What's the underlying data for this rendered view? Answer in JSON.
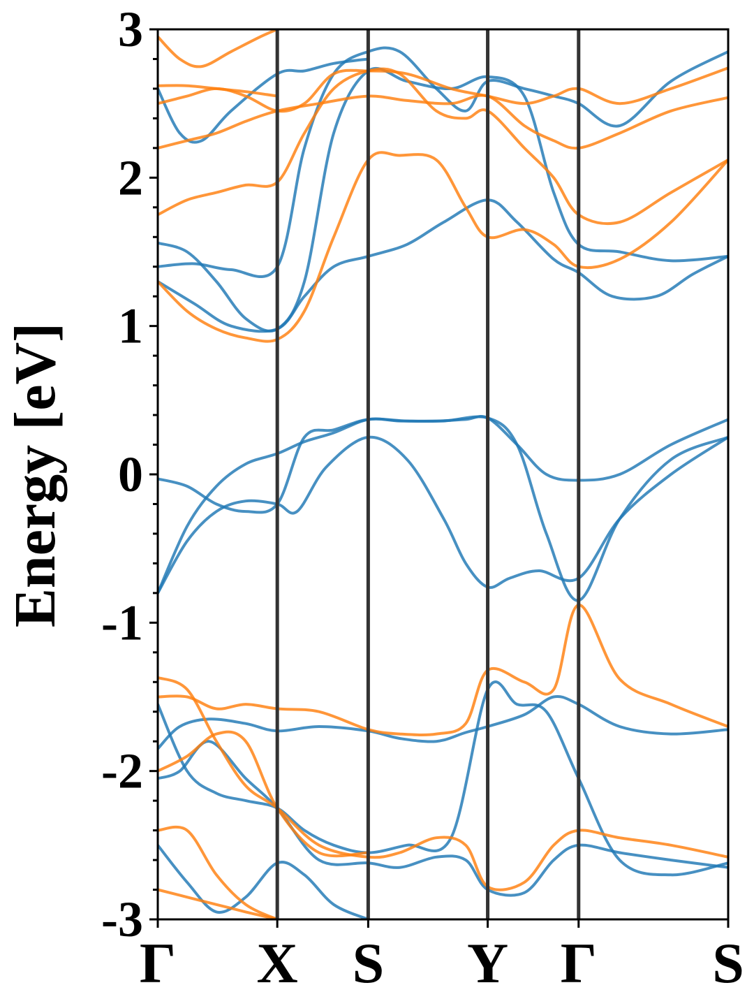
{
  "chart_data": {
    "type": "line",
    "title": "",
    "xlabel": "",
    "ylabel": "Energy [eV]",
    "ylim": [
      -3,
      3
    ],
    "yticks": [
      3,
      2,
      1,
      0,
      -1,
      -2,
      -3
    ],
    "yticklabels": [
      "3",
      "2",
      "1",
      "0",
      "-1",
      "-2",
      "-3"
    ],
    "path_ticks": [
      0,
      1.63,
      2.87,
      4.5,
      5.74,
      7.78
    ],
    "path_labels": [
      "Γ",
      "X",
      "S",
      "Y",
      "Γ",
      "S"
    ],
    "grid": false,
    "legend": "none",
    "colors": {
      "blue": "#1f77b4",
      "orange": "#ff7f0e",
      "kline": "#333333"
    },
    "series": [
      {
        "color": "blue",
        "x": [
          0,
          0.4,
          0.8,
          1.2,
          1.63,
          2.0,
          2.4,
          2.87,
          3.3,
          3.8,
          4.2,
          4.5,
          4.9,
          5.3,
          5.74,
          6.3,
          7.0,
          7.78
        ],
        "values": [
          -0.8,
          -0.35,
          -0.08,
          0.07,
          0.14,
          0.22,
          0.28,
          0.37,
          0.36,
          0.36,
          0.37,
          0.38,
          0.2,
          0.0,
          -0.04,
          0.0,
          0.2,
          0.37
        ]
      },
      {
        "color": "blue",
        "x": [
          0,
          0.4,
          0.8,
          1.2,
          1.63,
          1.9,
          2.3,
          2.87,
          3.4,
          3.9,
          4.2,
          4.5,
          4.8,
          5.2,
          5.74,
          6.3,
          7.0,
          7.78
        ],
        "values": [
          -0.8,
          -0.45,
          -0.25,
          -0.18,
          -0.2,
          -0.25,
          0.05,
          0.25,
          0.1,
          -0.3,
          -0.6,
          -0.76,
          -0.7,
          -0.65,
          -0.7,
          -0.3,
          0.0,
          0.25
        ]
      },
      {
        "color": "blue",
        "x": [
          0,
          0.4,
          0.8,
          1.2,
          1.63,
          2.0,
          2.4,
          2.87,
          3.4,
          3.9,
          4.5,
          4.9,
          5.3,
          5.74,
          6.3,
          7.0,
          7.78
        ],
        "values": [
          -0.03,
          -0.08,
          -0.2,
          -0.25,
          -0.2,
          0.25,
          0.3,
          0.37,
          0.36,
          0.36,
          0.38,
          0.2,
          -0.4,
          -0.85,
          -0.3,
          0.1,
          0.25
        ]
      },
      {
        "color": "blue",
        "x": [
          0,
          0.5,
          1.0,
          1.63,
          2.0,
          2.4,
          2.87,
          3.4,
          3.9,
          4.5,
          4.9,
          5.4,
          5.74,
          6.2,
          6.8,
          7.3,
          7.78
        ],
        "values": [
          1.3,
          1.15,
          1.0,
          0.98,
          1.2,
          1.4,
          1.47,
          1.55,
          1.7,
          1.85,
          1.7,
          1.45,
          1.36,
          1.2,
          1.2,
          1.35,
          1.47
        ]
      },
      {
        "color": "blue",
        "x": [
          0,
          0.5,
          1.0,
          1.63,
          2.0,
          2.4,
          2.87,
          3.3,
          3.8,
          4.2,
          4.5,
          5.0,
          5.4,
          5.74,
          6.3,
          7.0,
          7.78
        ],
        "values": [
          1.4,
          1.42,
          1.38,
          1.4,
          2.2,
          2.7,
          2.85,
          2.85,
          2.6,
          2.45,
          2.65,
          2.6,
          2.55,
          2.5,
          2.35,
          2.65,
          2.85
        ]
      },
      {
        "color": "blue",
        "x": [
          0,
          0.4,
          0.8,
          1.2,
          1.63,
          2.0,
          2.4,
          2.87,
          3.4,
          4.0,
          4.5,
          5.0,
          5.4,
          5.74,
          6.3,
          7.0,
          7.78
        ],
        "values": [
          1.56,
          1.5,
          1.3,
          1.05,
          0.98,
          1.3,
          2.3,
          2.72,
          2.65,
          2.6,
          2.68,
          2.55,
          1.9,
          1.55,
          1.5,
          1.44,
          1.47
        ]
      },
      {
        "color": "blue",
        "x": [
          0,
          0.3,
          0.6,
          1.0,
          1.63,
          2.0,
          2.4,
          2.87
        ],
        "values": [
          2.6,
          2.3,
          2.25,
          2.45,
          2.7,
          2.72,
          2.77,
          2.8
        ]
      },
      {
        "color": "blue",
        "x": [
          0,
          0.3,
          0.7,
          1.2,
          1.63,
          2.2,
          2.87,
          3.3,
          3.8,
          4.2,
          4.5,
          5.0,
          5.4,
          5.74,
          6.3,
          7.0,
          7.78
        ],
        "values": [
          -1.85,
          -1.7,
          -1.65,
          -1.68,
          -1.73,
          -1.7,
          -1.73,
          -1.78,
          -1.8,
          -1.74,
          -1.7,
          -1.62,
          -1.5,
          -1.55,
          -1.7,
          -1.75,
          -1.72
        ]
      },
      {
        "color": "blue",
        "x": [
          0,
          0.3,
          0.7,
          1.2,
          1.63,
          2.2,
          2.87,
          3.3,
          3.8,
          4.2,
          4.5,
          5.0,
          5.4,
          5.74,
          6.3,
          7.0,
          7.78
        ],
        "values": [
          -2.05,
          -2.0,
          -1.8,
          -2.05,
          -2.25,
          -2.6,
          -2.62,
          -2.65,
          -2.58,
          -2.6,
          -2.8,
          -2.82,
          -2.6,
          -2.5,
          -2.55,
          -2.6,
          -2.65
        ]
      },
      {
        "color": "blue",
        "x": [
          0,
          0.4,
          0.8,
          1.2,
          1.63,
          2.0,
          2.4,
          2.87,
          3.4,
          4.0,
          4.5,
          4.9,
          5.3,
          5.74,
          6.3,
          7.0,
          7.78
        ],
        "values": [
          -1.55,
          -2.0,
          -2.15,
          -2.2,
          -2.25,
          -2.4,
          -2.5,
          -2.55,
          -2.5,
          -2.45,
          -1.45,
          -1.55,
          -1.6,
          -2.05,
          -2.6,
          -2.7,
          -2.62
        ]
      },
      {
        "color": "blue",
        "x": [
          0,
          0.4,
          0.8,
          1.2,
          1.63,
          2.0,
          2.4,
          2.87
        ],
        "values": [
          -2.5,
          -2.75,
          -2.95,
          -2.85,
          -2.62,
          -2.7,
          -2.9,
          -3.0
        ]
      },
      {
        "color": "orange",
        "x": [
          0,
          0.4,
          0.8,
          1.2,
          1.63,
          2.0,
          2.4,
          2.87,
          3.3,
          3.8,
          4.2,
          4.5,
          5.0,
          5.4,
          5.74,
          6.3,
          7.0,
          7.78
        ],
        "values": [
          1.3,
          1.1,
          0.98,
          0.92,
          0.91,
          1.1,
          1.6,
          2.12,
          2.15,
          2.12,
          1.8,
          1.6,
          1.65,
          1.55,
          1.4,
          1.45,
          1.7,
          2.12
        ]
      },
      {
        "color": "orange",
        "x": [
          0,
          0.4,
          0.8,
          1.2,
          1.63,
          2.0,
          2.4,
          2.87,
          3.3,
          3.8,
          4.2,
          4.5,
          5.0,
          5.4,
          5.74,
          6.3,
          7.0,
          7.78
        ],
        "values": [
          1.75,
          1.85,
          1.9,
          1.95,
          1.97,
          2.3,
          2.6,
          2.72,
          2.7,
          2.45,
          2.4,
          2.45,
          2.2,
          2.0,
          1.75,
          1.7,
          1.9,
          2.12
        ]
      },
      {
        "color": "orange",
        "x": [
          0,
          0.4,
          0.8,
          1.2,
          1.63,
          2.2,
          2.87,
          3.4,
          4.0,
          4.5,
          5.0,
          5.4,
          5.74,
          6.3,
          7.0,
          7.78
        ],
        "values": [
          2.2,
          2.25,
          2.3,
          2.38,
          2.45,
          2.5,
          2.55,
          2.52,
          2.5,
          2.55,
          2.35,
          2.25,
          2.2,
          2.3,
          2.45,
          2.54
        ]
      },
      {
        "color": "orange",
        "x": [
          0,
          0.4,
          0.8,
          1.2,
          1.63,
          2.0,
          2.4,
          2.87,
          3.4,
          4.0,
          4.5,
          5.0,
          5.4,
          5.74,
          6.3,
          7.0,
          7.78
        ],
        "values": [
          2.5,
          2.55,
          2.6,
          2.55,
          2.45,
          2.5,
          2.7,
          2.72,
          2.7,
          2.6,
          2.55,
          2.5,
          2.55,
          2.6,
          2.5,
          2.6,
          2.74
        ]
      },
      {
        "color": "orange",
        "x": [
          0,
          0.4,
          0.8,
          1.2,
          1.63
        ],
        "values": [
          2.62,
          2.62,
          2.6,
          2.58,
          2.55
        ]
      },
      {
        "color": "orange",
        "x": [
          0,
          0.3,
          0.6,
          1.0,
          1.4,
          1.63
        ],
        "values": [
          2.95,
          2.8,
          2.75,
          2.85,
          2.95,
          3.0
        ]
      },
      {
        "color": "orange",
        "x": [
          0,
          0.4,
          0.8,
          1.2,
          1.63,
          2.2,
          2.87,
          3.3,
          3.8,
          4.2,
          4.5,
          5.0,
          5.4,
          5.74,
          6.3,
          7.0,
          7.78
        ],
        "values": [
          -1.5,
          -1.5,
          -1.58,
          -1.55,
          -1.58,
          -1.6,
          -1.72,
          -1.75,
          -1.75,
          -1.68,
          -1.32,
          -1.4,
          -1.45,
          -0.88,
          -1.38,
          -1.55,
          -1.7
        ]
      },
      {
        "color": "orange",
        "x": [
          0,
          0.4,
          0.8,
          1.2,
          1.63,
          2.2,
          2.87,
          3.3,
          3.8,
          4.2,
          4.5,
          5.0,
          5.4,
          5.74,
          6.3,
          7.0,
          7.78
        ],
        "values": [
          -1.37,
          -1.45,
          -1.8,
          -2.1,
          -2.25,
          -2.5,
          -2.58,
          -2.55,
          -2.45,
          -2.5,
          -2.78,
          -2.75,
          -2.5,
          -2.4,
          -2.45,
          -2.5,
          -2.58
        ]
      },
      {
        "color": "orange",
        "x": [
          0,
          0.4,
          0.8,
          1.2,
          1.63,
          2.2,
          2.87
        ],
        "values": [
          -2.0,
          -1.9,
          -1.75,
          -1.8,
          -2.25,
          -2.55,
          -2.55
        ]
      },
      {
        "color": "orange",
        "x": [
          0,
          0.4,
          0.8,
          1.2,
          1.63
        ],
        "values": [
          -2.4,
          -2.4,
          -2.7,
          -2.9,
          -3.0
        ]
      },
      {
        "color": "orange",
        "x": [
          0,
          0.4,
          0.8,
          1.2,
          1.63
        ],
        "values": [
          -2.8,
          -2.85,
          -2.9,
          -2.95,
          -3.0
        ]
      }
    ]
  }
}
